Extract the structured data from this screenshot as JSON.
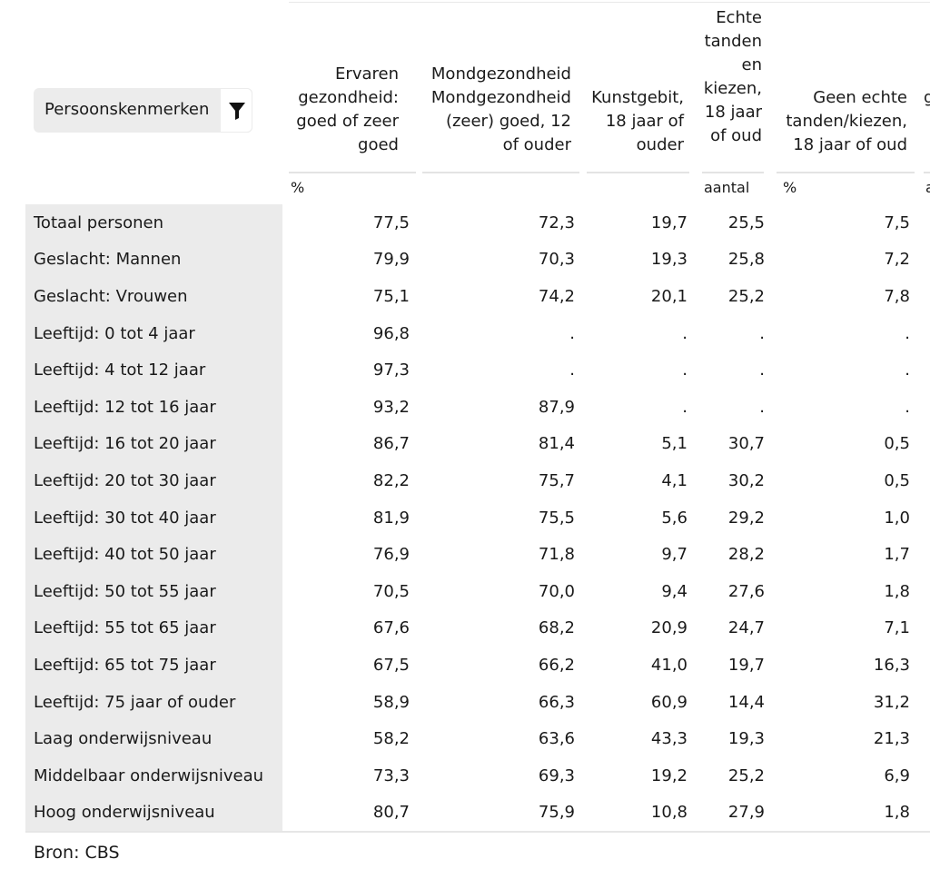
{
  "filter": {
    "label": "Persoonskenmerken",
    "icon": "filter-icon"
  },
  "columns": [
    {
      "lines": [
        "Ervaren",
        "gezondheid:",
        "goed of zeer",
        "goed"
      ]
    },
    {
      "lines": [
        "Mondgezondheid",
        "Mondgezondheid",
        "(zeer) goed, 12",
        "of ouder"
      ]
    },
    {
      "lines": [
        "Kunstgebit,",
        "18 jaar of",
        "ouder"
      ]
    },
    {
      "lines": [
        "Echte",
        "tanden",
        "en",
        "kiezen,",
        "18 jaar",
        "of oud"
      ]
    },
    {
      "lines": [
        "Geen echte",
        "tanden/kiezen,",
        "18 jaar of oud"
      ]
    },
    {
      "lines": [
        "g"
      ]
    }
  ],
  "units": [
    "%",
    "aantal",
    "%",
    "a"
  ],
  "rows": [
    {
      "label": "Totaal personen",
      "values": [
        "77,5",
        "72,3",
        "19,7",
        "25,5",
        "7,5"
      ]
    },
    {
      "label": "Geslacht: Mannen",
      "values": [
        "79,9",
        "70,3",
        "19,3",
        "25,8",
        "7,2"
      ]
    },
    {
      "label": "Geslacht: Vrouwen",
      "values": [
        "75,1",
        "74,2",
        "20,1",
        "25,2",
        "7,8"
      ]
    },
    {
      "label": "Leeftijd: 0 tot 4 jaar",
      "values": [
        "96,8",
        ".",
        ".",
        ".",
        "."
      ]
    },
    {
      "label": "Leeftijd: 4 tot 12 jaar",
      "values": [
        "97,3",
        ".",
        ".",
        ".",
        "."
      ]
    },
    {
      "label": "Leeftijd: 12 tot 16 jaar",
      "values": [
        "93,2",
        "87,9",
        ".",
        ".",
        "."
      ]
    },
    {
      "label": "Leeftijd: 16 tot 20 jaar",
      "values": [
        "86,7",
        "81,4",
        "5,1",
        "30,7",
        "0,5"
      ]
    },
    {
      "label": "Leeftijd: 20 tot 30 jaar",
      "values": [
        "82,2",
        "75,7",
        "4,1",
        "30,2",
        "0,5"
      ]
    },
    {
      "label": "Leeftijd: 30 tot 40 jaar",
      "values": [
        "81,9",
        "75,5",
        "5,6",
        "29,2",
        "1,0"
      ]
    },
    {
      "label": "Leeftijd: 40 tot 50 jaar",
      "values": [
        "76,9",
        "71,8",
        "9,7",
        "28,2",
        "1,7"
      ]
    },
    {
      "label": "Leeftijd: 50 tot 55 jaar",
      "values": [
        "70,5",
        "70,0",
        "9,4",
        "27,6",
        "1,8"
      ]
    },
    {
      "label": "Leeftijd: 55 tot 65 jaar",
      "values": [
        "67,6",
        "68,2",
        "20,9",
        "24,7",
        "7,1"
      ]
    },
    {
      "label": "Leeftijd: 65 tot 75 jaar",
      "values": [
        "67,5",
        "66,2",
        "41,0",
        "19,7",
        "16,3"
      ]
    },
    {
      "label": "Leeftijd: 75 jaar of ouder",
      "values": [
        "58,9",
        "66,3",
        "60,9",
        "14,4",
        "31,2"
      ]
    },
    {
      "label": "Laag onderwijsniveau",
      "values": [
        "58,2",
        "63,6",
        "43,3",
        "19,3",
        "21,3"
      ]
    },
    {
      "label": "Middelbaar onderwijsniveau",
      "values": [
        "73,3",
        "69,3",
        "19,2",
        "25,2",
        "6,9"
      ]
    },
    {
      "label": "Hoog onderwijsniveau",
      "values": [
        "80,7",
        "75,9",
        "10,8",
        "27,9",
        "1,8"
      ]
    }
  ],
  "source": "Bron: CBS"
}
